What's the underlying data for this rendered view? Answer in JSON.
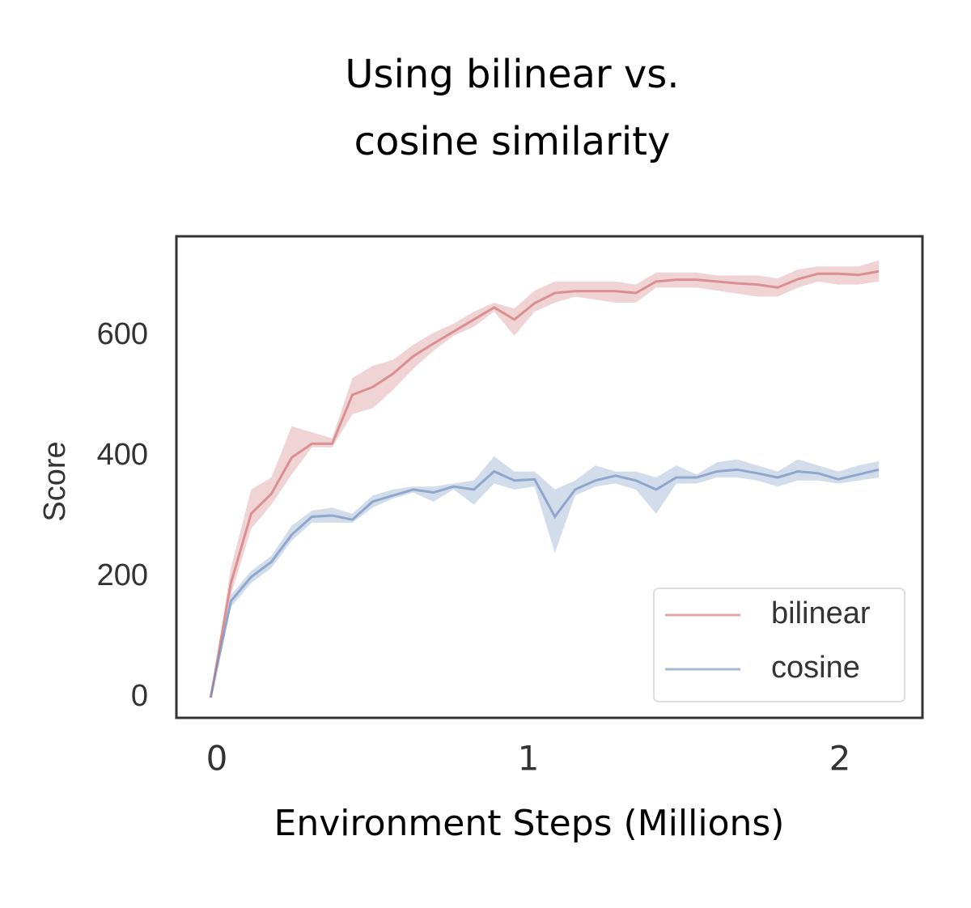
{
  "chart_data": {
    "type": "line",
    "title": [
      "Using bilinear vs.",
      "cosine similarity"
    ],
    "xlabel": "Environment Steps (Millions)",
    "ylabel": "Score",
    "x": [
      -0.02,
      0.045,
      0.11,
      0.175,
      0.24,
      0.305,
      0.37,
      0.435,
      0.5,
      0.565,
      0.63,
      0.695,
      0.76,
      0.825,
      0.89,
      0.955,
      1.02,
      1.085,
      1.15,
      1.215,
      1.28,
      1.345,
      1.41,
      1.475,
      1.54,
      1.605,
      1.67,
      1.735,
      1.8,
      1.865,
      1.93,
      1.995,
      2.06,
      2.125
    ],
    "series": [
      {
        "name": "bilinear",
        "color": "#c44e52",
        "values": [
          0,
          190,
          305,
          338,
          398,
          421,
          421,
          502,
          515,
          537,
          566,
          587,
          607,
          627,
          647,
          627,
          654,
          671,
          674,
          674,
          674,
          671,
          690,
          693,
          693,
          690,
          687,
          685,
          680,
          694,
          703,
          703,
          701,
          707
        ],
        "lower": [
          0,
          170,
          280,
          320,
          370,
          415,
          415,
          470,
          480,
          510,
          545,
          575,
          600,
          615,
          640,
          600,
          640,
          655,
          665,
          660,
          655,
          655,
          680,
          680,
          680,
          675,
          670,
          665,
          665,
          680,
          690,
          685,
          685,
          690
        ],
        "upper": [
          0,
          215,
          345,
          365,
          450,
          440,
          430,
          530,
          550,
          560,
          585,
          605,
          620,
          640,
          655,
          645,
          675,
          690,
          690,
          690,
          690,
          685,
          705,
          705,
          705,
          700,
          700,
          700,
          695,
          710,
          715,
          715,
          715,
          725
        ]
      },
      {
        "name": "cosine",
        "color": "#4c72b0",
        "values": [
          0,
          160,
          200,
          225,
          270,
          300,
          302,
          295,
          325,
          335,
          345,
          340,
          350,
          345,
          375,
          360,
          362,
          300,
          345,
          360,
          368,
          360,
          345,
          365,
          365,
          375,
          378,
          372,
          365,
          375,
          372,
          362,
          370,
          378
        ],
        "lower": [
          0,
          150,
          190,
          215,
          260,
          290,
          290,
          290,
          315,
          330,
          340,
          325,
          345,
          320,
          355,
          345,
          350,
          240,
          335,
          350,
          355,
          345,
          305,
          355,
          355,
          365,
          365,
          360,
          350,
          360,
          360,
          355,
          360,
          365
        ],
        "upper": [
          0,
          170,
          210,
          235,
          285,
          310,
          315,
          305,
          335,
          345,
          350,
          350,
          355,
          360,
          400,
          375,
          375,
          345,
          360,
          385,
          375,
          375,
          365,
          385,
          370,
          390,
          395,
          385,
          375,
          395,
          385,
          375,
          385,
          392
        ]
      }
    ],
    "xlim": [
      -0.13,
      2.265
    ],
    "xticks": [
      0,
      1,
      2
    ],
    "ylim": [
      -33.6,
      765
    ],
    "yticks": [
      0,
      200,
      400,
      600
    ],
    "legend": "lower right",
    "grid": false
  }
}
